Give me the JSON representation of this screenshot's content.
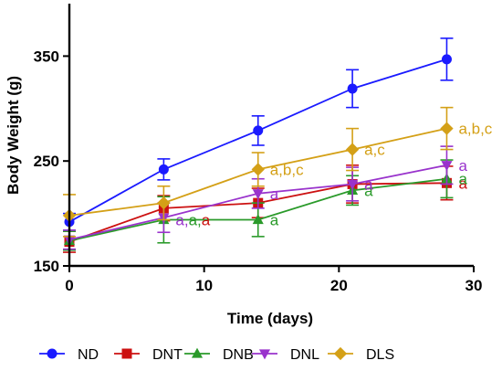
{
  "chart_data": {
    "type": "line",
    "xlabel": "Time (days)",
    "ylabel": "Body Weight (g)",
    "xlim": [
      0,
      30
    ],
    "ylim": [
      150,
      400
    ],
    "xticks": [
      0,
      10,
      20,
      30
    ],
    "yticks": [
      150,
      250,
      350
    ],
    "x": [
      0,
      7,
      14,
      21,
      28
    ],
    "grid": false,
    "legend_position": "bottom",
    "series": [
      {
        "name": "ND",
        "color": "#1a1aff",
        "marker": "circle",
        "values": [
          192,
          242,
          279,
          319,
          347
        ],
        "errors": [
          8,
          10,
          14,
          18,
          20
        ],
        "annotations": [
          "",
          "",
          "",
          "",
          ""
        ]
      },
      {
        "name": "DNT",
        "color": "#cc1111",
        "marker": "square",
        "values": [
          173,
          205,
          210,
          228,
          229
        ],
        "errors": [
          10,
          12,
          14,
          18,
          16
        ],
        "annotations": [
          "",
          "",
          "",
          "a",
          "a"
        ]
      },
      {
        "name": "DNB",
        "color": "#2a9a2a",
        "marker": "triangle-up",
        "values": [
          174,
          194,
          194,
          222,
          233
        ],
        "errors": [
          9,
          22,
          16,
          14,
          18
        ],
        "annotations": [
          "",
          "",
          "a",
          "a",
          "a"
        ]
      },
      {
        "name": "DNL",
        "color": "#9933cc",
        "marker": "triangle-down",
        "values": [
          175,
          196,
          219,
          228,
          246
        ],
        "errors": [
          9,
          14,
          14,
          16,
          18
        ],
        "annotations": [
          "",
          "",
          "a",
          "a",
          "a"
        ]
      },
      {
        "name": "DLS",
        "color": "#d4a017",
        "marker": "diamond",
        "values": [
          198,
          210,
          242,
          261,
          281
        ],
        "errors": [
          20,
          16,
          16,
          20,
          20
        ],
        "annotations": [
          "",
          "",
          "a,b,c",
          "a,c",
          "a,b,c"
        ]
      }
    ],
    "point_annotations": [
      {
        "x": 7,
        "parts": [
          {
            "text": "a",
            "series": "DNL"
          },
          {
            "text": ",",
            "series": "DNL"
          },
          {
            "text": "a",
            "series": "DNB"
          },
          {
            "text": ",",
            "series": "DNB"
          },
          {
            "text": "a",
            "series": "DNT"
          }
        ]
      }
    ]
  }
}
